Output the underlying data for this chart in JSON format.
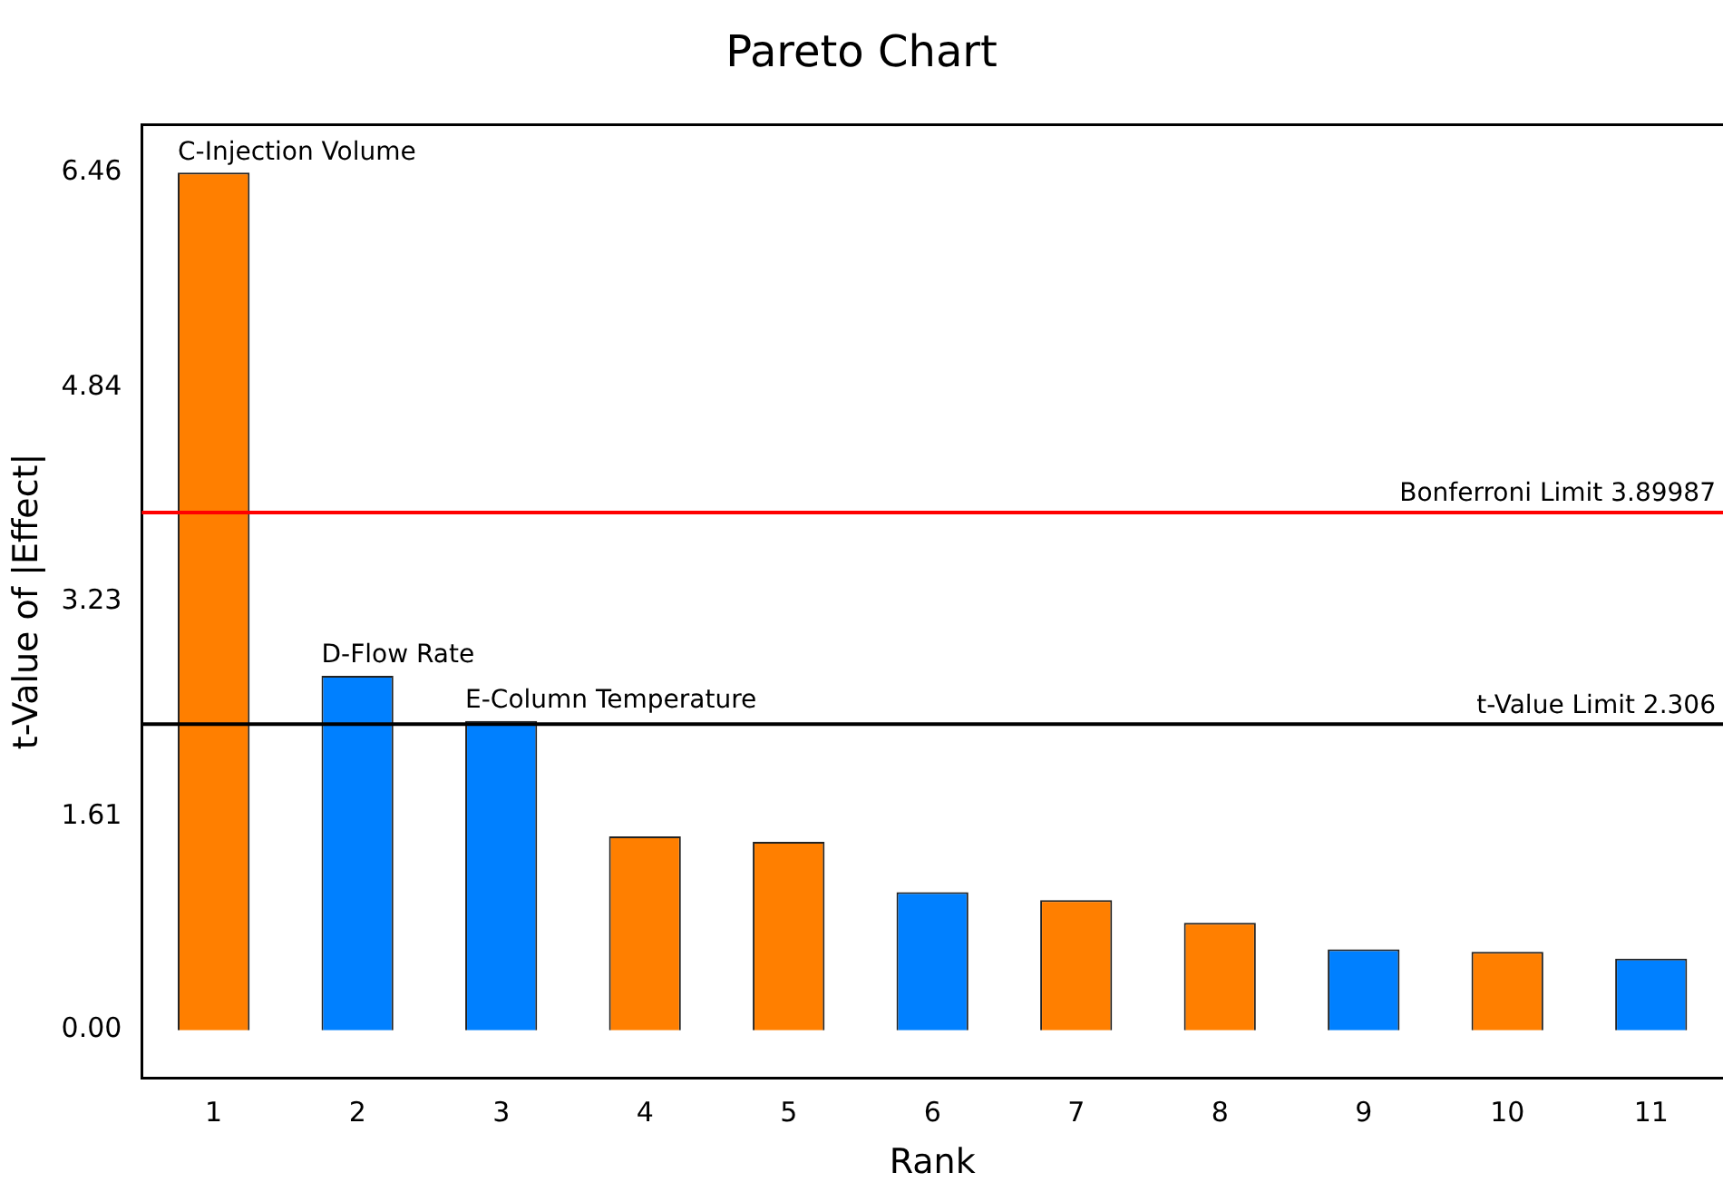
{
  "chart_data": {
    "type": "bar",
    "title": "Pareto Chart",
    "xlabel": "Rank",
    "ylabel": "t-Value of |Effect|",
    "categories": [
      "1",
      "2",
      "3",
      "4",
      "5",
      "6",
      "7",
      "8",
      "9",
      "10",
      "11"
    ],
    "values": [
      6.46,
      2.67,
      2.33,
      1.46,
      1.42,
      1.04,
      0.98,
      0.81,
      0.61,
      0.59,
      0.54
    ],
    "colors": [
      "#ff7f00",
      "#0080ff",
      "#0080ff",
      "#ff7f00",
      "#ff7f00",
      "#0080ff",
      "#ff7f00",
      "#ff7f00",
      "#0080ff",
      "#ff7f00",
      "#0080ff"
    ],
    "ylim": [
      -0.36,
      6.82
    ],
    "yticks": [
      {
        "value": 0,
        "label": "0.00"
      },
      {
        "value": 1.61,
        "label": "1.61"
      },
      {
        "value": 3.23,
        "label": "3.23"
      },
      {
        "value": 4.84,
        "label": "4.84"
      },
      {
        "value": 6.46,
        "label": "6.46"
      }
    ],
    "ref_lines": [
      {
        "axis": "y",
        "value": 3.89987,
        "label": "Bonferroni Limit 3.89987",
        "color": "#ff0000"
      },
      {
        "axis": "y",
        "value": 2.306,
        "label": "t-Value Limit 2.306",
        "color": "#000000"
      }
    ],
    "annotations": [
      {
        "text": "C-Injection Volume",
        "x": "1",
        "y": 6.46
      },
      {
        "text": "D-Flow Rate",
        "x": "2",
        "y": 2.67
      },
      {
        "text": "E-Column Temperature",
        "x": "3",
        "y": 2.33
      }
    ],
    "grid": false,
    "legend": false
  }
}
